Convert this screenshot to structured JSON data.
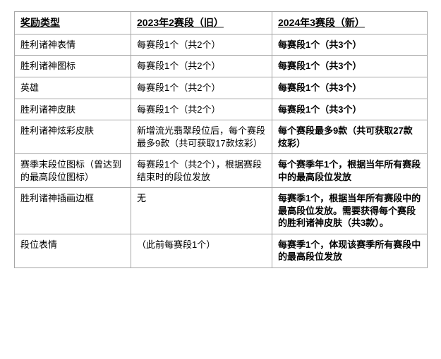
{
  "table": {
    "header": {
      "col1": "奖励类型",
      "col2": "2023年2赛段（旧）",
      "col3": "2024年3赛段（新）"
    },
    "rows": [
      {
        "type": "胜利诸神表情",
        "old": "每赛段1个（共2个）",
        "new": "每赛段1个（共3个）",
        "new_bold": true
      },
      {
        "type": "胜利诸神图标",
        "old": "每赛段1个（共2个）",
        "new": "每赛段1个（共3个）",
        "new_bold": true
      },
      {
        "type": "英雄",
        "old": "每赛段1个（共2个）",
        "new": "每赛段1个（共3个）",
        "new_bold": true
      },
      {
        "type": "胜利诸神皮肤",
        "old": "每赛段1个（共2个）",
        "new": "每赛段1个（共3个）",
        "new_bold": true
      },
      {
        "type": "胜利诸神炫彩皮肤",
        "old": "新增流光翡翠段位后，每个赛段最多9款（共可获取17款炫彩）",
        "new": "每个赛段最多9款（共可获取27款炫彩）",
        "new_bold": true
      },
      {
        "type": "赛季末段位图标（曾达到的最高段位图标）",
        "old": "每赛段1个（共2个），根据赛段结束时的段位发放",
        "new": "每个赛季年1个，根据当年所有赛段中的最高段位发放",
        "new_bold": true
      },
      {
        "type": "胜利诸神插画边框",
        "old": "无",
        "new": "每赛季1个，根据当年所有赛段中的最高段位发放。需要获得每个赛段的胜利诸神皮肤（共3款）。",
        "new_bold": true
      },
      {
        "type": "段位表情",
        "old": "（此前每赛段1个）",
        "new": "每赛季1个，体现该赛季所有赛段中的最高段位发放",
        "new_bold": true
      }
    ]
  }
}
